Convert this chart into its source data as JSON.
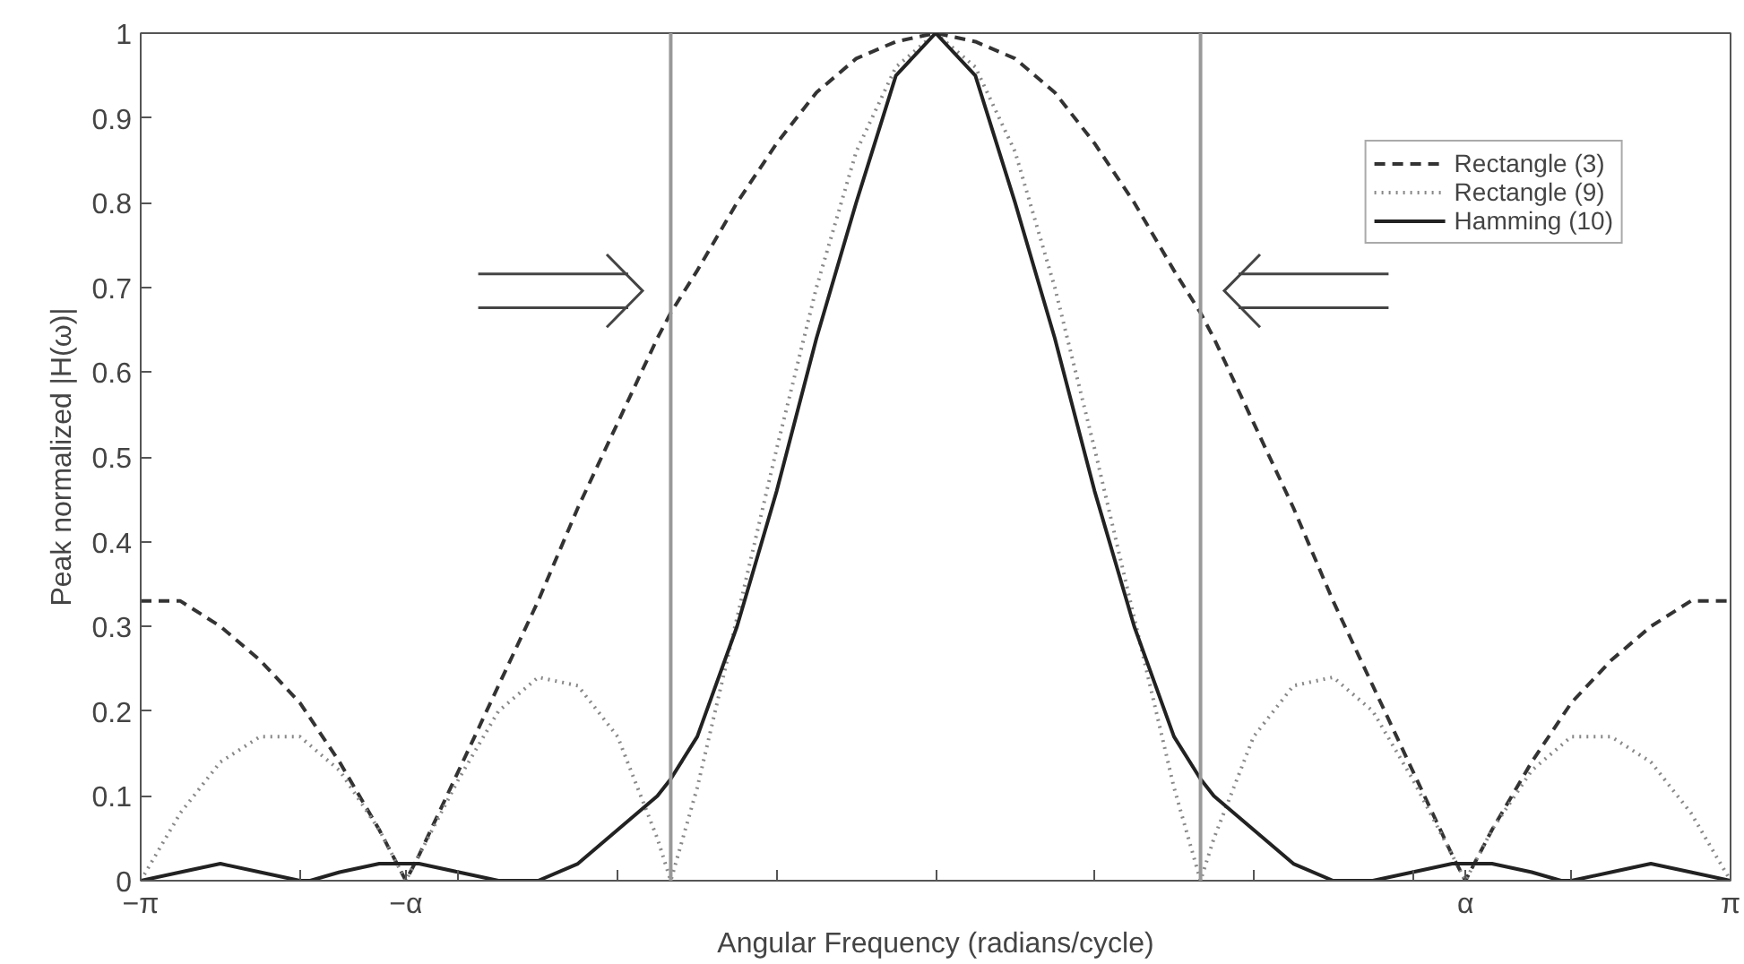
{
  "chart_data": {
    "type": "line",
    "xlabel": "Angular Frequency (radians/cycle)",
    "ylabel": "Peak normalized |H(ω)|",
    "xlim": [
      -3.142,
      3.142
    ],
    "ylim": [
      0,
      1
    ],
    "xticks": [
      {
        "value": -3.142,
        "label": "−π"
      },
      {
        "value": -2.513,
        "label": null
      },
      {
        "value": -2.094,
        "label": "−α"
      },
      {
        "value": -1.885,
        "label": null
      },
      {
        "value": -1.257,
        "label": null
      },
      {
        "value": -0.628,
        "label": null
      },
      {
        "value": 0,
        "label": null
      },
      {
        "value": 0.628,
        "label": null
      },
      {
        "value": 1.257,
        "label": null
      },
      {
        "value": 1.885,
        "label": null
      },
      {
        "value": 2.094,
        "label": "α"
      },
      {
        "value": 2.513,
        "label": null
      },
      {
        "value": 3.142,
        "label": "π"
      }
    ],
    "yticks": [
      0,
      0.1,
      0.2,
      0.3,
      0.4,
      0.5,
      0.6,
      0.7,
      0.8,
      0.9,
      1
    ],
    "grid": false,
    "legend": "top right",
    "ref_lines": [
      {
        "axis": "x",
        "value": -1.047,
        "label": null,
        "color": "#999999"
      },
      {
        "axis": "x",
        "value": 1.047,
        "label": null,
        "color": "#999999"
      }
    ],
    "series": [
      {
        "name": "Rectangle (3)",
        "color": "#333333",
        "line_style": "dashed",
        "x": [
          -3.142,
          -2.985,
          -2.827,
          -2.67,
          -2.513,
          -2.356,
          -2.199,
          -2.094,
          -2.042,
          -1.885,
          -1.728,
          -1.571,
          -1.414,
          -1.257,
          -1.1,
          -1.047,
          -0.942,
          -0.785,
          -0.628,
          -0.471,
          -0.314,
          -0.157,
          0,
          0.157,
          0.314,
          0.471,
          0.628,
          0.785,
          0.942,
          1.047,
          1.1,
          1.257,
          1.414,
          1.571,
          1.728,
          1.885,
          2.042,
          2.094,
          2.199,
          2.356,
          2.513,
          2.67,
          2.827,
          2.985,
          3.142
        ],
        "values": [
          0.33,
          0.33,
          0.3,
          0.26,
          0.21,
          0.14,
          0.06,
          0,
          0.03,
          0.13,
          0.23,
          0.33,
          0.44,
          0.54,
          0.64,
          0.67,
          0.72,
          0.8,
          0.87,
          0.93,
          0.97,
          0.99,
          1,
          0.99,
          0.97,
          0.93,
          0.87,
          0.8,
          0.72,
          0.67,
          0.64,
          0.54,
          0.44,
          0.33,
          0.23,
          0.13,
          0.03,
          0,
          0.06,
          0.14,
          0.21,
          0.26,
          0.3,
          0.33,
          0.33
        ]
      },
      {
        "name": "Rectangle (9)",
        "color": "#888888",
        "line_style": "dotted",
        "x": [
          -3.142,
          -2.985,
          -2.827,
          -2.67,
          -2.513,
          -2.356,
          -2.199,
          -2.094,
          -2.042,
          -1.885,
          -1.728,
          -1.571,
          -1.414,
          -1.257,
          -1.1,
          -1.047,
          -0.942,
          -0.785,
          -0.628,
          -0.471,
          -0.314,
          -0.157,
          0,
          0.157,
          0.314,
          0.471,
          0.628,
          0.785,
          0.942,
          1.047,
          1.1,
          1.257,
          1.414,
          1.571,
          1.728,
          1.885,
          2.042,
          2.094,
          2.199,
          2.356,
          2.513,
          2.67,
          2.827,
          2.985,
          3.142
        ],
        "values": [
          0,
          0.08,
          0.14,
          0.17,
          0.17,
          0.13,
          0.06,
          0,
          0.03,
          0.12,
          0.2,
          0.24,
          0.23,
          0.17,
          0.05,
          0,
          0.11,
          0.31,
          0.51,
          0.7,
          0.86,
          0.96,
          1,
          0.96,
          0.86,
          0.7,
          0.51,
          0.31,
          0.11,
          0,
          0.05,
          0.17,
          0.23,
          0.24,
          0.2,
          0.12,
          0.03,
          0,
          0.06,
          0.13,
          0.17,
          0.17,
          0.14,
          0.08,
          0
        ]
      },
      {
        "name": "Hamming (10)",
        "color": "#222222",
        "line_style": "solid",
        "x": [
          -3.142,
          -2.985,
          -2.827,
          -2.67,
          -2.513,
          -2.472,
          -2.356,
          -2.199,
          -2.042,
          -1.885,
          -1.728,
          -1.621,
          -1.571,
          -1.414,
          -1.257,
          -1.1,
          -1.047,
          -0.942,
          -0.785,
          -0.628,
          -0.471,
          -0.314,
          -0.157,
          0,
          0.157,
          0.314,
          0.471,
          0.628,
          0.785,
          0.942,
          1.047,
          1.1,
          1.257,
          1.414,
          1.571,
          1.621,
          1.728,
          1.885,
          2.042,
          2.199,
          2.356,
          2.472,
          2.513,
          2.67,
          2.827,
          2.985,
          3.142
        ],
        "values": [
          0,
          0.01,
          0.02,
          0.01,
          0,
          0,
          0.01,
          0.02,
          0.02,
          0.01,
          0,
          0,
          0,
          0.02,
          0.06,
          0.1,
          0.12,
          0.17,
          0.3,
          0.46,
          0.64,
          0.8,
          0.95,
          1,
          0.95,
          0.8,
          0.64,
          0.46,
          0.3,
          0.17,
          0.12,
          0.1,
          0.06,
          0.02,
          0,
          0,
          0,
          0.01,
          0.02,
          0.02,
          0.01,
          0,
          0,
          0.01,
          0.02,
          0.01,
          0
        ]
      }
    ]
  }
}
